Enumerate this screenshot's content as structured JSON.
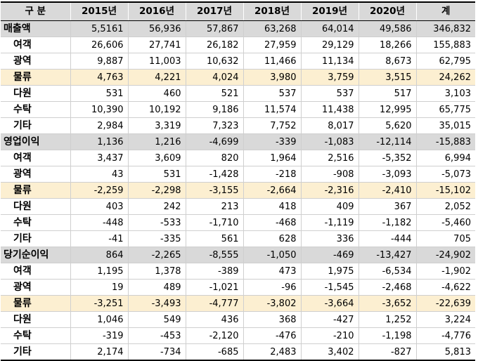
{
  "table": {
    "headers": [
      "구 분",
      "2015년",
      "2016년",
      "2017년",
      "2018년",
      "2019년",
      "2020년",
      "계"
    ],
    "rows": [
      {
        "label": "매출액",
        "section": true,
        "values": [
          "5,5161",
          "56,936",
          "57,867",
          "63,268",
          "64,014",
          "49,586",
          "346,832"
        ]
      },
      {
        "label": "여객",
        "values": [
          "26,606",
          "27,741",
          "26,182",
          "27,959",
          "29,129",
          "18,266",
          "155,883"
        ]
      },
      {
        "label": "광역",
        "values": [
          "9,887",
          "11,003",
          "10,632",
          "11,466",
          "11,134",
          "8,673",
          "62,795"
        ]
      },
      {
        "label": "물류",
        "highlight": true,
        "values": [
          "4,763",
          "4,221",
          "4,024",
          "3,980",
          "3,759",
          "3,515",
          "24,262"
        ]
      },
      {
        "label": "다원",
        "values": [
          "531",
          "460",
          "521",
          "537",
          "537",
          "517",
          "3,103"
        ]
      },
      {
        "label": "수탁",
        "values": [
          "10,390",
          "10,192",
          "9,186",
          "11,574",
          "11,438",
          "12,995",
          "65,775"
        ]
      },
      {
        "label": "기타",
        "values": [
          "2,984",
          "3,319",
          "7,323",
          "7,752",
          "8,017",
          "5,620",
          "35,015"
        ]
      },
      {
        "label": "영업이익",
        "section": true,
        "values": [
          "1,136",
          "1,216",
          "-4,699",
          "-339",
          "-1,083",
          "-12,114",
          "-15,883"
        ]
      },
      {
        "label": "여객",
        "values": [
          "3,437",
          "3,609",
          "820",
          "1,964",
          "2,516",
          "-5,352",
          "6,994"
        ]
      },
      {
        "label": "광역",
        "values": [
          "43",
          "531",
          "-1,428",
          "-218",
          "-908",
          "-3,093",
          "-5,073"
        ]
      },
      {
        "label": "물류",
        "highlight": true,
        "values": [
          "-2,259",
          "-2,298",
          "-3,155",
          "-2,664",
          "-2,316",
          "-2,410",
          "-15,102"
        ]
      },
      {
        "label": "다원",
        "values": [
          "403",
          "242",
          "213",
          "418",
          "409",
          "367",
          "2,052"
        ]
      },
      {
        "label": "수탁",
        "values": [
          "-448",
          "-533",
          "-1,710",
          "-468",
          "-1,119",
          "-1,182",
          "-5,460"
        ]
      },
      {
        "label": "기타",
        "values": [
          "-41",
          "-335",
          "561",
          "628",
          "336",
          "-444",
          "705"
        ]
      },
      {
        "label": "당기순이익",
        "section": true,
        "values": [
          "864",
          "-2,265",
          "-8,555",
          "-1,050",
          "-469",
          "-13,427",
          "-24,902"
        ]
      },
      {
        "label": "여객",
        "values": [
          "1,195",
          "1,378",
          "-389",
          "473",
          "1,975",
          "-6,534",
          "-1,902"
        ]
      },
      {
        "label": "광역",
        "values": [
          "19",
          "489",
          "-1,021",
          "-96",
          "-1,545",
          "-2,468",
          "-4,622"
        ]
      },
      {
        "label": "물류",
        "highlight": true,
        "values": [
          "-3,251",
          "-3,493",
          "-4,777",
          "-3,802",
          "-3,664",
          "-3,652",
          "-22,639"
        ]
      },
      {
        "label": "다원",
        "values": [
          "1,046",
          "549",
          "436",
          "368",
          "-427",
          "1,252",
          "3,224"
        ]
      },
      {
        "label": "수탁",
        "values": [
          "-319",
          "-453",
          "-2,120",
          "-476",
          "-210",
          "-1,198",
          "-4,776"
        ]
      },
      {
        "label": "기타",
        "values": [
          "2,174",
          "-734",
          "-685",
          "2,483",
          "3,402",
          "-827",
          "5,813"
        ]
      }
    ]
  }
}
